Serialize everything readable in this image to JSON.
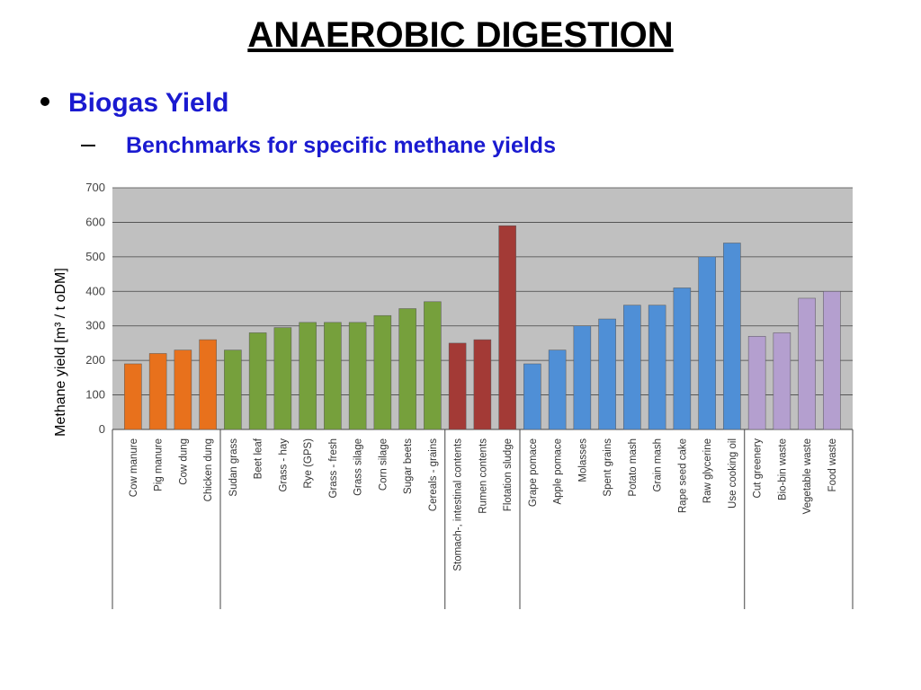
{
  "header": {
    "title": "ANAEROBIC DIGESTION",
    "bullet": "Biogas Yield",
    "subbullet": "Benchmarks for specific methane yields"
  },
  "chart_data": {
    "type": "bar",
    "ylabel": "Methane yield [m³ / t oDM]",
    "categories": [
      "Cow manure",
      "Pig manure",
      "Cow dung",
      "Chicken dung",
      "Sudan grass",
      "Beet leaf",
      "Grass - hay",
      "Rye (GPS)",
      "Grass - fresh",
      "Grass silage",
      "Corn silage",
      "Sugar beets",
      "Cereals - grains",
      "Stomach-, intestinal contents",
      "Rumen contents",
      "Flotation sludge",
      "Grape pomace",
      "Apple pomace",
      "Molasses",
      "Spent grains",
      "Potato mash",
      "Grain mash",
      "Rape seed cake",
      "Raw glycerine",
      "Use cooking oil",
      "Cut greenery",
      "Bio-bin waste",
      "Vegetable waste",
      "Food waste"
    ],
    "values": [
      190,
      220,
      230,
      260,
      230,
      280,
      295,
      310,
      310,
      310,
      330,
      350,
      370,
      250,
      260,
      590,
      190,
      230,
      300,
      320,
      360,
      360,
      410,
      500,
      540,
      270,
      280,
      380,
      400
    ],
    "colors": [
      "#e8711c",
      "#e8711c",
      "#e8711c",
      "#e8711c",
      "#76a03c",
      "#76a03c",
      "#76a03c",
      "#76a03c",
      "#76a03c",
      "#76a03c",
      "#76a03c",
      "#76a03c",
      "#76a03c",
      "#a33a36",
      "#a33a36",
      "#a33a36",
      "#4f8fd6",
      "#4f8fd6",
      "#4f8fd6",
      "#4f8fd6",
      "#4f8fd6",
      "#4f8fd6",
      "#4f8fd6",
      "#4f8fd6",
      "#4f8fd6",
      "#b49fcf",
      "#b49fcf",
      "#b49fcf",
      "#b49fcf"
    ],
    "ylim": [
      0,
      700
    ],
    "yticks": [
      0,
      100,
      200,
      300,
      400,
      500,
      600,
      700
    ],
    "grid": true
  }
}
